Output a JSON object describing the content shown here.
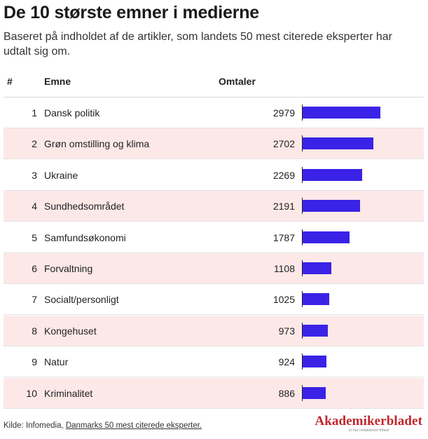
{
  "title": "De 10 største emner i medierne",
  "subtitle": "Baseret på indholdet af de artikler, som landets 50 mest citerede eksperter har udtalt sig om.",
  "columns": {
    "rank": "#",
    "topic": "Emne",
    "count": "Omtaler"
  },
  "colors": {
    "bar": "#3a23e6",
    "alt_row": "#fde8e8",
    "logo": "#c0272d"
  },
  "chart_data": {
    "type": "table",
    "bar_max": 2979,
    "rows": [
      {
        "rank": "1",
        "topic": "Dansk politik",
        "value": 2979
      },
      {
        "rank": "2",
        "topic": "Grøn omstilling og klima",
        "value": 2702
      },
      {
        "rank": "3",
        "topic": "Ukraine",
        "value": 2269
      },
      {
        "rank": "4",
        "topic": "Sundhedsområdet",
        "value": 2191
      },
      {
        "rank": "5",
        "topic": "Samfundsøkonomi",
        "value": 1787
      },
      {
        "rank": "6",
        "topic": "Forvaltning",
        "value": 1108
      },
      {
        "rank": "7",
        "topic": "Socialt/personligt",
        "value": 1025
      },
      {
        "rank": "8",
        "topic": "Kongehuset",
        "value": 973
      },
      {
        "rank": "9",
        "topic": "Natur",
        "value": 924
      },
      {
        "rank": "10",
        "topic": "Kriminalitet",
        "value": 886
      }
    ]
  },
  "footer": {
    "source_label": "Kilde: Infomedia, ",
    "source_link": "Danmarks 50 mest citerede eksperter."
  },
  "logo": {
    "name": "Akademikerbladet",
    "tagline": "Vi har redaktionel frihed"
  }
}
